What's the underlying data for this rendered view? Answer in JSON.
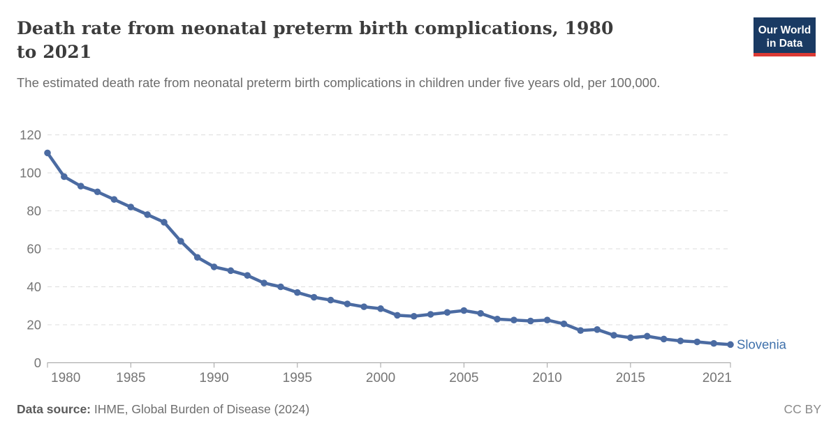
{
  "header": {
    "title": "Death rate from neonatal preterm birth complications, 1980 to 2021",
    "subtitle": "The estimated death rate from neonatal preterm birth complications in children under five years old, per 100,000.",
    "logo": {
      "line1": "Our World",
      "line2": "in Data",
      "bg_color": "#1a3a63",
      "stripe_color": "#dc3a34"
    }
  },
  "chart_data": {
    "type": "line",
    "title": "Death rate from neonatal preterm birth complications, 1980 to 2021",
    "xlabel": "",
    "ylabel": "",
    "xlim": [
      1980,
      2021
    ],
    "ylim": [
      0,
      120
    ],
    "xticks": [
      1980,
      1985,
      1990,
      1995,
      2000,
      2005,
      2010,
      2015,
      2021
    ],
    "yticks": [
      0,
      20,
      40,
      60,
      80,
      100,
      120
    ],
    "grid": "horizontal-dashed",
    "legend_position": "line-end-label",
    "years": [
      1980,
      1981,
      1982,
      1983,
      1984,
      1985,
      1986,
      1987,
      1988,
      1989,
      1990,
      1991,
      1992,
      1993,
      1994,
      1995,
      1996,
      1997,
      1998,
      1999,
      2000,
      2001,
      2002,
      2003,
      2004,
      2005,
      2006,
      2007,
      2008,
      2009,
      2010,
      2011,
      2012,
      2013,
      2014,
      2015,
      2016,
      2017,
      2018,
      2019,
      2020,
      2021
    ],
    "series": [
      {
        "name": "Slovenia",
        "color": "#4b6ba2",
        "label_color": "#3e70ab",
        "values": [
          110.5,
          98,
          93,
          90,
          86,
          82,
          78,
          74,
          64,
          55.5,
          50.5,
          48.5,
          46,
          42,
          40,
          37,
          34.5,
          33,
          31,
          29.5,
          28.5,
          25,
          24.5,
          25.5,
          26.5,
          27.5,
          26,
          23,
          22.5,
          22,
          22.5,
          20.5,
          17,
          17.5,
          14.5,
          13.2,
          14,
          12.5,
          11.5,
          11,
          10.2,
          9.6
        ]
      }
    ],
    "colors": {
      "gridline": "#dcdcdc",
      "axis": "#a0a0a0",
      "tick_label": "#757575"
    }
  },
  "footer": {
    "source_label": "Data source:",
    "source_text": " IHME, Global Burden of Disease (2024)",
    "license": "CC BY"
  }
}
